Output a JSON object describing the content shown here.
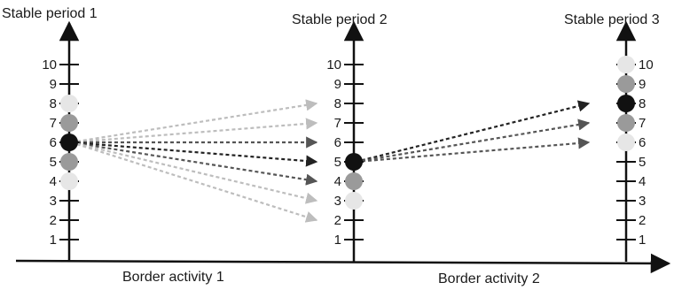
{
  "periods": [
    {
      "title": "Stable period 1",
      "ticks": [
        "1",
        "2",
        "3",
        "4",
        "5",
        "6",
        "7",
        "8",
        "9",
        "10"
      ]
    },
    {
      "title": "Stable period 2",
      "ticks": [
        "1",
        "2",
        "3",
        "4",
        "5",
        "6",
        "7",
        "8",
        "9",
        "10"
      ]
    },
    {
      "title": "Stable period 3",
      "ticks": [
        "1",
        "2",
        "3",
        "4",
        "5",
        "6",
        "7",
        "8",
        "9",
        "10"
      ]
    }
  ],
  "transitions": [
    {
      "label": "Border activity 1"
    },
    {
      "label": "Border activity 2"
    }
  ],
  "colors": {
    "black": "#111111",
    "dark_gray": "#9a9a9a",
    "light_gray": "#e6e6e6",
    "arrow_black": "#222222",
    "arrow_dark": "#555555",
    "arrow_light": "#bdbdbd"
  },
  "circles": [
    {
      "axis": 0,
      "level": 4,
      "shade": "light_gray"
    },
    {
      "axis": 0,
      "level": 5,
      "shade": "dark_gray"
    },
    {
      "axis": 0,
      "level": 6,
      "shade": "black"
    },
    {
      "axis": 0,
      "level": 7,
      "shade": "dark_gray"
    },
    {
      "axis": 0,
      "level": 8,
      "shade": "light_gray"
    },
    {
      "axis": 1,
      "level": 3,
      "shade": "light_gray"
    },
    {
      "axis": 1,
      "level": 4,
      "shade": "dark_gray"
    },
    {
      "axis": 1,
      "level": 5,
      "shade": "black"
    },
    {
      "axis": 2,
      "level": 6,
      "shade": "light_gray"
    },
    {
      "axis": 2,
      "level": 7,
      "shade": "dark_gray"
    },
    {
      "axis": 2,
      "level": 8,
      "shade": "black"
    },
    {
      "axis": 2,
      "level": 9,
      "shade": "dark_gray"
    },
    {
      "axis": 2,
      "level": 10,
      "shade": "light_gray"
    }
  ],
  "arrows": [
    {
      "from_axis": 0,
      "from_level": 6,
      "to_axis": 1,
      "to_level": 8,
      "shade": "arrow_light"
    },
    {
      "from_axis": 0,
      "from_level": 6,
      "to_axis": 1,
      "to_level": 7,
      "shade": "arrow_light"
    },
    {
      "from_axis": 0,
      "from_level": 6,
      "to_axis": 1,
      "to_level": 6,
      "shade": "arrow_dark"
    },
    {
      "from_axis": 0,
      "from_level": 6,
      "to_axis": 1,
      "to_level": 5,
      "shade": "arrow_black"
    },
    {
      "from_axis": 0,
      "from_level": 6,
      "to_axis": 1,
      "to_level": 4,
      "shade": "arrow_dark"
    },
    {
      "from_axis": 0,
      "from_level": 6,
      "to_axis": 1,
      "to_level": 3,
      "shade": "arrow_light"
    },
    {
      "from_axis": 0,
      "from_level": 6,
      "to_axis": 1,
      "to_level": 2,
      "shade": "arrow_light"
    },
    {
      "from_axis": 1,
      "from_level": 5,
      "to_axis": 2,
      "to_level": 8,
      "shade": "arrow_black"
    },
    {
      "from_axis": 1,
      "from_level": 5,
      "to_axis": 2,
      "to_level": 7,
      "shade": "arrow_dark"
    },
    {
      "from_axis": 1,
      "from_level": 5,
      "to_axis": 2,
      "to_level": 6,
      "shade": "arrow_dark"
    }
  ]
}
